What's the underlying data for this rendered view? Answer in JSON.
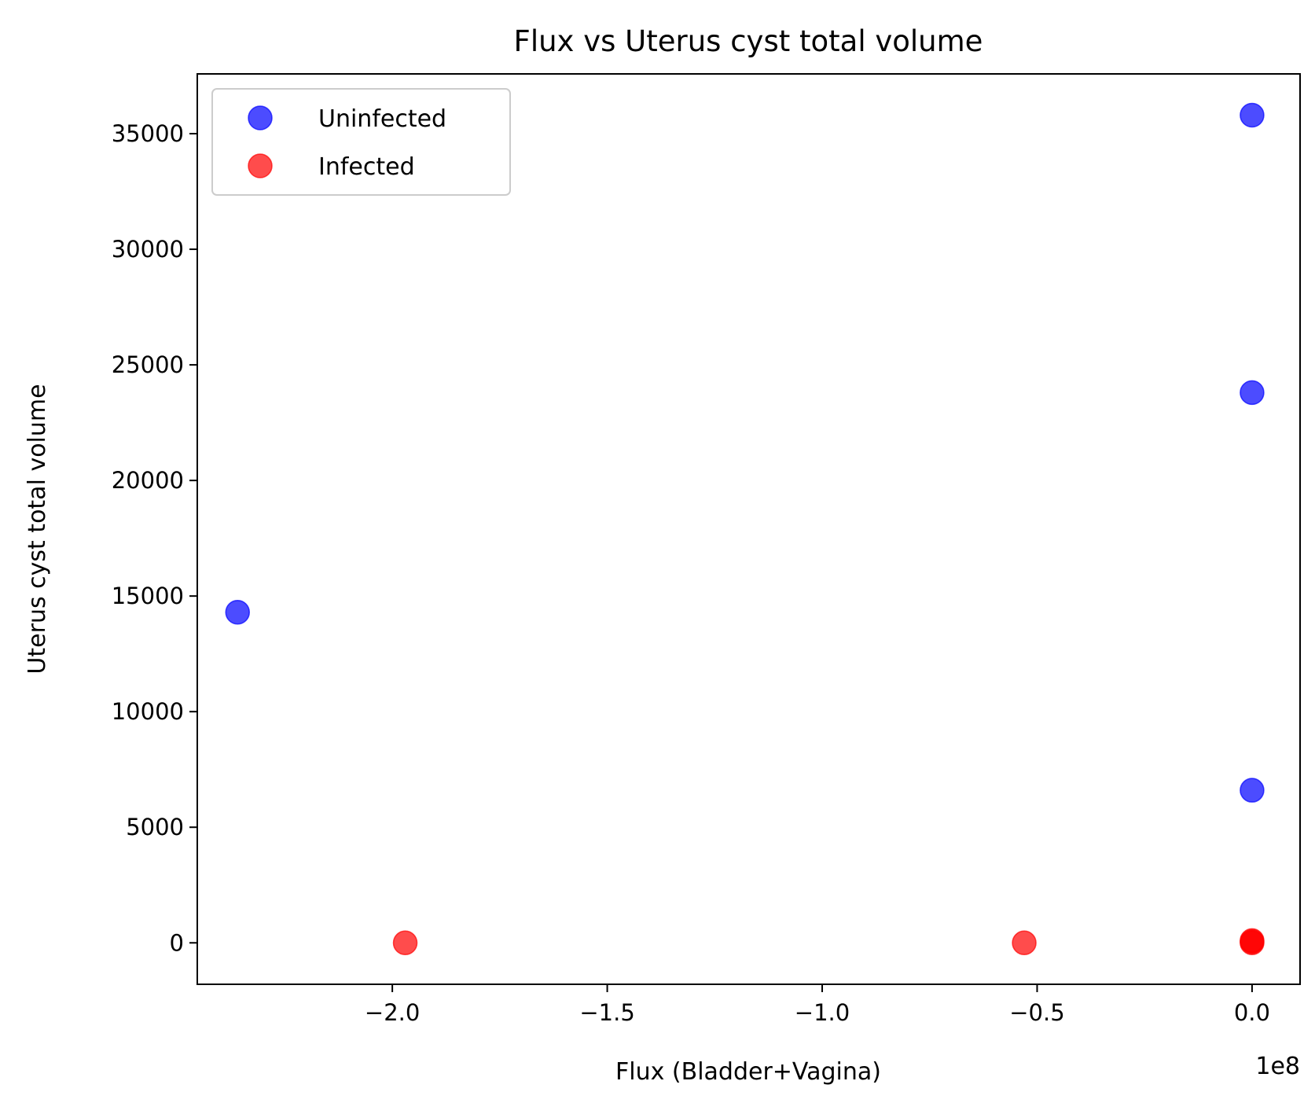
{
  "chart_data": {
    "type": "scatter",
    "title": "Flux vs Uterus cyst total volume",
    "xlabel": "Flux (Bladder+Vagina)",
    "ylabel": "Uterus cyst total volume",
    "x_offset_label": "1e8",
    "xlim": [
      -2.4537,
      0.1117
    ],
    "ylim": [
      -1793,
      37585
    ],
    "x_ticks": [
      {
        "value": -2.0,
        "label": "−2.0"
      },
      {
        "value": -1.5,
        "label": "−1.5"
      },
      {
        "value": -1.0,
        "label": "−1.0"
      },
      {
        "value": -0.5,
        "label": "−0.5"
      },
      {
        "value": 0.0,
        "label": "0.0"
      }
    ],
    "y_ticks": [
      {
        "value": 0,
        "label": "0"
      },
      {
        "value": 5000,
        "label": "5000"
      },
      {
        "value": 10000,
        "label": "10000"
      },
      {
        "value": 15000,
        "label": "15000"
      },
      {
        "value": 20000,
        "label": "20000"
      },
      {
        "value": 25000,
        "label": "25000"
      },
      {
        "value": 30000,
        "label": "30000"
      },
      {
        "value": 35000,
        "label": "35000"
      }
    ],
    "grid": false,
    "legend_position": "top-left",
    "series": [
      {
        "name": "Uninfected",
        "color": "#0000ff",
        "points": [
          {
            "x": -2.36,
            "y": 14300
          },
          {
            "x": 0.0,
            "y": 35800
          },
          {
            "x": 0.0,
            "y": 23800
          },
          {
            "x": 0.0,
            "y": 6600
          }
        ]
      },
      {
        "name": "Infected",
        "color": "#ff0000",
        "points": [
          {
            "x": -1.97,
            "y": 0
          },
          {
            "x": -0.53,
            "y": 0
          },
          {
            "x": 0.0,
            "y": 0
          },
          {
            "x": 0.0,
            "y": 50
          },
          {
            "x": 0.0,
            "y": 100
          }
        ]
      }
    ]
  }
}
